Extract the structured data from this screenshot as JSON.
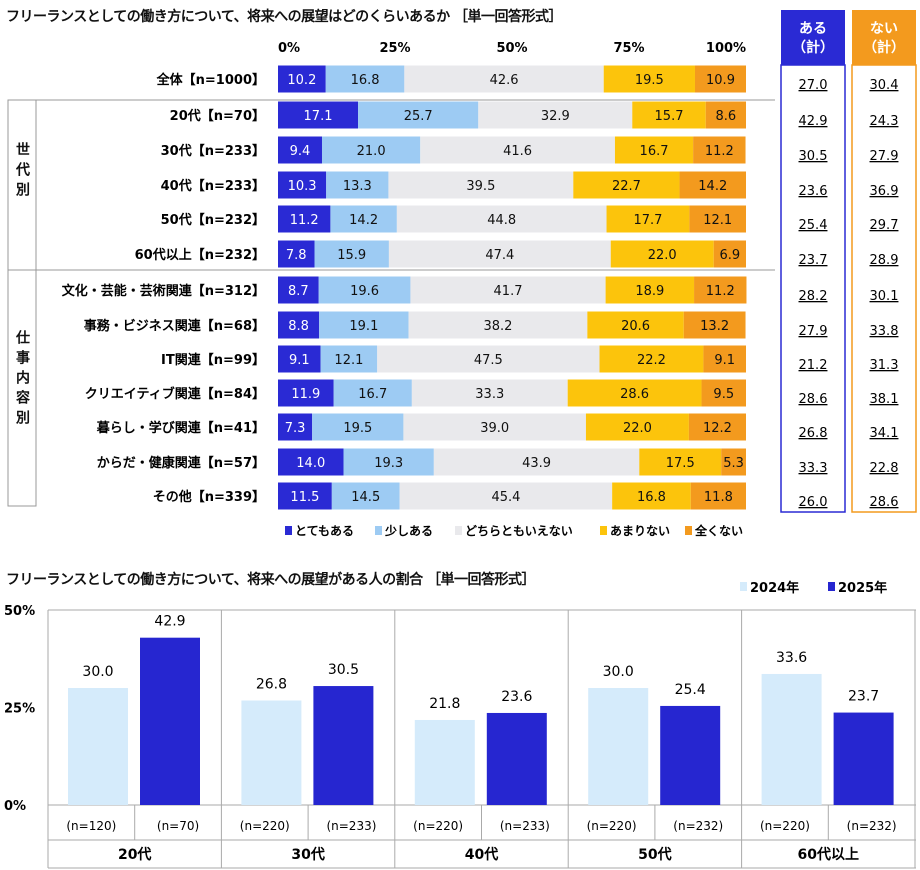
{
  "chart_data": [
    {
      "type": "stacked-bar-horizontal",
      "title": "フリーランスとしての働き方について、将来への展望はどのくらいあるか ［単一回答形式］",
      "xticks": [
        "0%",
        "25%",
        "50%",
        "75%",
        "100%"
      ],
      "xlim": [
        0,
        100
      ],
      "legend_position": "bottom",
      "series_names": [
        "とてもある",
        "少しある",
        "どちらともいえない",
        "あまりない",
        "全くない"
      ],
      "colors": [
        "#2a2ad4",
        "#9dcbf3",
        "#e9e9ec",
        "#fcc40c",
        "#f39a1e"
      ],
      "summary_headers": [
        "ある\n（計）",
        "ない\n（計）"
      ],
      "summary_header_lines": [
        [
          "ある",
          "（計）"
        ],
        [
          "ない",
          "（計）"
        ]
      ],
      "summary_colors": [
        "#2a2ad4",
        "#f39a1e"
      ],
      "groups": [
        {
          "label": "世代別",
          "chars": [
            "世",
            "代",
            "別"
          ]
        },
        {
          "label": "仕事内容別",
          "chars": [
            "仕",
            "事",
            "内",
            "容",
            "別"
          ]
        }
      ],
      "rows": [
        {
          "label": "全体【n=1000】",
          "values": [
            10.2,
            16.8,
            42.6,
            19.5,
            10.9
          ],
          "aru": "27.0",
          "nai": "30.4"
        },
        {
          "label": "20代【n=70】",
          "values": [
            17.1,
            25.7,
            32.9,
            15.7,
            8.6
          ],
          "aru": "42.9",
          "nai": "24.3"
        },
        {
          "label": "30代【n=233】",
          "values": [
            9.4,
            21.0,
            41.6,
            16.7,
            11.2
          ],
          "aru": "30.5",
          "nai": "27.9"
        },
        {
          "label": "40代【n=233】",
          "values": [
            10.3,
            13.3,
            39.5,
            22.7,
            14.2
          ],
          "aru": "23.6",
          "nai": "36.9"
        },
        {
          "label": "50代【n=232】",
          "values": [
            11.2,
            14.2,
            44.8,
            17.7,
            12.1
          ],
          "aru": "25.4",
          "nai": "29.7"
        },
        {
          "label": "60代以上【n=232】",
          "values": [
            7.8,
            15.9,
            47.4,
            22.0,
            6.9
          ],
          "aru": "23.7",
          "nai": "28.9"
        },
        {
          "label": "文化・芸能・芸術関連【n=312】",
          "values": [
            8.7,
            19.6,
            41.7,
            18.9,
            11.2
          ],
          "aru": "28.2",
          "nai": "30.1"
        },
        {
          "label": "事務・ビジネス関連【n=68】",
          "values": [
            8.8,
            19.1,
            38.2,
            20.6,
            13.2
          ],
          "aru": "27.9",
          "nai": "33.8"
        },
        {
          "label": "IT関連【n=99】",
          "values": [
            9.1,
            12.1,
            47.5,
            22.2,
            9.1
          ],
          "aru": "21.2",
          "nai": "31.3"
        },
        {
          "label": "クリエイティブ関連【n=84】",
          "values": [
            11.9,
            16.7,
            33.3,
            28.6,
            9.5
          ],
          "aru": "28.6",
          "nai": "38.1"
        },
        {
          "label": "暮らし・学び関連【n=41】",
          "values": [
            7.3,
            19.5,
            39.0,
            22.0,
            12.2
          ],
          "aru": "26.8",
          "nai": "34.1"
        },
        {
          "label": "からだ・健康関連【n=57】",
          "values": [
            14.0,
            19.3,
            43.9,
            17.5,
            5.3
          ],
          "aru": "33.3",
          "nai": "22.8"
        },
        {
          "label": "その他【n=339】",
          "values": [
            11.5,
            14.5,
            45.4,
            16.8,
            11.8
          ],
          "aru": "26.0",
          "nai": "28.6"
        }
      ]
    },
    {
      "type": "bar",
      "title": "フリーランスとしての働き方について、将来への展望がある人の割合 ［単一回答形式］",
      "yticks": [
        "0%",
        "25%",
        "50%"
      ],
      "ylim": [
        0,
        50
      ],
      "legend_position": "top-right",
      "categories": [
        "20代",
        "30代",
        "40代",
        "50代",
        "60代以上"
      ],
      "series": [
        {
          "name": "2024年",
          "color": "#d5ebfb",
          "values": [
            30.0,
            26.8,
            21.8,
            30.0,
            33.6
          ],
          "n": [
            "(n=120)",
            "(n=220)",
            "(n=220)",
            "(n=220)",
            "(n=220)"
          ]
        },
        {
          "name": "2025年",
          "color": "#2626d0",
          "values": [
            42.9,
            30.5,
            23.6,
            25.4,
            23.7
          ],
          "n": [
            "(n=70)",
            "(n=233)",
            "(n=233)",
            "(n=232)",
            "(n=232)"
          ]
        }
      ]
    }
  ]
}
